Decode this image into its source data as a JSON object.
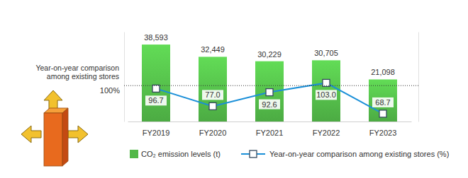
{
  "chart_data": {
    "type": "bar",
    "categories": [
      "FY2019",
      "FY2020",
      "FY2021",
      "FY2022",
      "FY2023"
    ],
    "series": [
      {
        "name": "CO₂ emission levels (t)",
        "type": "bar",
        "color": "#52b848",
        "values": [
          38593,
          32449,
          30229,
          30705,
          21098
        ],
        "value_labels": [
          "38,593",
          "32,449",
          "30,229",
          "30,705",
          "21,098"
        ]
      },
      {
        "name": "Year-on-year comparison among existing stores (%)",
        "type": "line",
        "axis": "y2",
        "color": "#1a8fd8",
        "marker": "square",
        "values": [
          96.7,
          77.0,
          92.6,
          103.0,
          68.7
        ],
        "value_labels": [
          "96.7",
          "77.0",
          "92.6",
          "103.0",
          "68.7"
        ]
      }
    ],
    "ylim": [
      0,
      45000
    ],
    "yticks": [],
    "y2lim": [
      60,
      160
    ],
    "y2ticks": [
      {
        "value": 100,
        "label": "100%"
      }
    ],
    "y2label": [
      "Year-on-year comparison",
      "among existing stores"
    ],
    "data_labels": true,
    "grid": true,
    "legend": "bottom"
  }
}
